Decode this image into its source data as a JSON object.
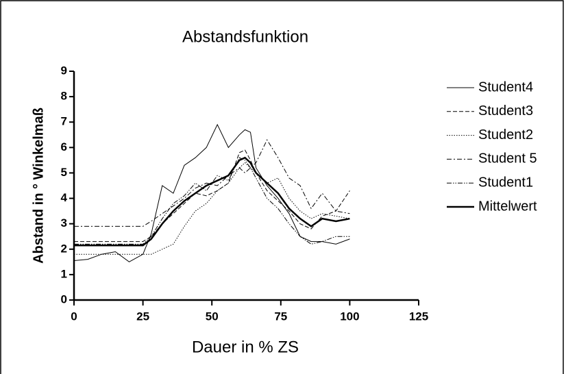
{
  "chart_data": {
    "type": "line",
    "title": "Abstandsfunktion",
    "xlabel": "Dauer in % ZS",
    "ylabel": "Abstand in ° Winkelmaß",
    "x": [
      0,
      5,
      10,
      15,
      20,
      25,
      28,
      32,
      36,
      40,
      44,
      48,
      52,
      56,
      60,
      62,
      64,
      66,
      70,
      74,
      78,
      82,
      86,
      90,
      95,
      100
    ],
    "series": [
      {
        "name": "Student4",
        "color": "#000000",
        "line_style": "solid",
        "line_width": 1,
        "values": [
          1.55,
          1.6,
          1.8,
          1.9,
          1.5,
          1.8,
          2.6,
          4.5,
          4.2,
          5.3,
          5.6,
          6.0,
          6.9,
          6.0,
          6.5,
          6.7,
          6.6,
          5.2,
          4.5,
          4.0,
          3.4,
          2.5,
          2.3,
          2.3,
          2.2,
          2.4
        ]
      },
      {
        "name": "Student3",
        "color": "#000000",
        "line_style": "dashed",
        "line_width": 1,
        "values": [
          2.3,
          2.3,
          2.3,
          2.3,
          2.3,
          2.3,
          2.5,
          3.0,
          3.4,
          3.8,
          4.2,
          4.1,
          4.3,
          4.6,
          5.8,
          5.9,
          5.5,
          5.0,
          4.3,
          3.9,
          3.5,
          3.0,
          2.8,
          3.3,
          3.5,
          4.3
        ]
      },
      {
        "name": "Student2",
        "color": "#000000",
        "line_style": "dotted",
        "line_width": 1,
        "values": [
          1.8,
          1.8,
          1.8,
          1.8,
          1.8,
          1.8,
          1.8,
          2.0,
          2.2,
          2.9,
          3.5,
          3.8,
          4.3,
          4.6,
          5.2,
          5.4,
          5.2,
          5.0,
          4.6,
          4.8,
          4.0,
          3.5,
          3.2,
          3.4,
          3.3,
          3.2
        ]
      },
      {
        "name": "Student 5",
        "color": "#000000",
        "line_style": "dashdot",
        "line_width": 1,
        "values": [
          2.9,
          2.9,
          2.9,
          2.9,
          2.9,
          2.9,
          3.1,
          3.4,
          3.7,
          4.0,
          4.4,
          4.6,
          4.5,
          4.9,
          5.2,
          5.0,
          5.2,
          5.4,
          6.3,
          5.6,
          4.8,
          4.5,
          3.6,
          4.2,
          3.5,
          3.4
        ]
      },
      {
        "name": "Student1",
        "color": "#000000",
        "line_style": "dashdotdot",
        "line_width": 1,
        "values": [
          2.2,
          2.2,
          2.2,
          2.2,
          2.2,
          2.2,
          2.5,
          3.2,
          3.8,
          4.1,
          4.6,
          4.3,
          4.9,
          4.7,
          5.6,
          5.5,
          5.2,
          4.8,
          4.0,
          3.6,
          3.0,
          2.5,
          2.2,
          2.3,
          2.5,
          2.5
        ]
      },
      {
        "name": "Mittelwert",
        "color": "#000000",
        "line_style": "solid",
        "line_width": 2.5,
        "values": [
          2.15,
          2.15,
          2.15,
          2.15,
          2.15,
          2.15,
          2.4,
          3.0,
          3.5,
          3.9,
          4.2,
          4.5,
          4.7,
          4.9,
          5.5,
          5.6,
          5.4,
          5.0,
          4.6,
          4.2,
          3.6,
          3.2,
          2.9,
          3.2,
          3.1,
          3.2
        ]
      }
    ],
    "xlim": [
      0,
      125
    ],
    "xticks": [
      0,
      25,
      50,
      75,
      100,
      125
    ],
    "ylim": [
      0,
      9
    ],
    "yticks": [
      0,
      1,
      2,
      3,
      4,
      5,
      6,
      7,
      8,
      9
    ],
    "grid": false,
    "legend": "right"
  }
}
